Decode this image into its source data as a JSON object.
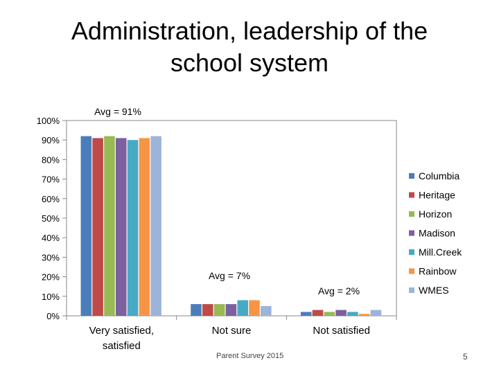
{
  "slide": {
    "title_line1": "Administration, leadership of the",
    "title_line2": "school system",
    "footer_source": "Parent Survey 2015",
    "page_number": "5"
  },
  "chart_data": {
    "type": "bar",
    "title": "Administration, leadership of the school system",
    "categories": [
      "Very satisfied, satisfied",
      "Not sure",
      "Not satisfied"
    ],
    "ylim": [
      0,
      100
    ],
    "yticks": [
      "0%",
      "10%",
      "20%",
      "30%",
      "40%",
      "50%",
      "60%",
      "70%",
      "80%",
      "90%",
      "100%"
    ],
    "grid": false,
    "legend_position": "right",
    "series": [
      {
        "name": "Columbia",
        "color": "#4a7ebb",
        "values": [
          92,
          6,
          2
        ]
      },
      {
        "name": "Heritage",
        "color": "#be4b48",
        "values": [
          91,
          6,
          3
        ]
      },
      {
        "name": "Horizon",
        "color": "#98b954",
        "values": [
          92,
          6,
          2
        ]
      },
      {
        "name": "Madison",
        "color": "#7d60a0",
        "values": [
          91,
          6,
          3
        ]
      },
      {
        "name": "Mill.Creek",
        "color": "#46aac5",
        "values": [
          90,
          8,
          2
        ]
      },
      {
        "name": "Rainbow",
        "color": "#f69546",
        "values": [
          91,
          8,
          1
        ]
      },
      {
        "name": "WMES",
        "color": "#9db4d9",
        "values": [
          92,
          5,
          3
        ]
      }
    ],
    "annotations": [
      {
        "text": "Avg = 91%",
        "category": "Very satisfied, satisfied"
      },
      {
        "text": "Avg = 7%",
        "category": "Not sure"
      },
      {
        "text": "Avg = 2%",
        "category": "Not satisfied"
      }
    ]
  }
}
